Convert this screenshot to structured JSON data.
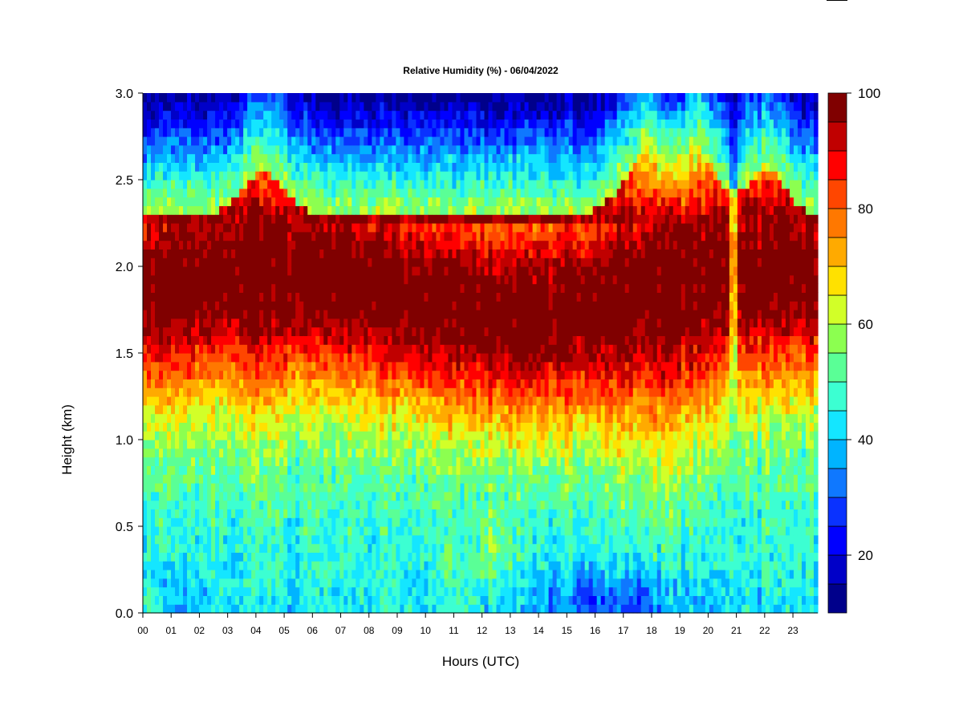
{
  "chart_data": {
    "type": "heatmap",
    "title": "Relative Humidity (%) - 06/04/2022",
    "xlabel": "Hours (UTC)",
    "ylabel": "Height (km)",
    "xlim": [
      0,
      24
    ],
    "ylim": [
      0.0,
      3.0
    ],
    "x_ticks": [
      0,
      1,
      2,
      3,
      4,
      5,
      6,
      7,
      8,
      9,
      10,
      11,
      12,
      13,
      14,
      15,
      16,
      17,
      18,
      19,
      20,
      21,
      22,
      23
    ],
    "x_tick_labels": [
      "00",
      "01",
      "02",
      "03",
      "04",
      "05",
      "06",
      "07",
      "08",
      "09",
      "10",
      "11",
      "12",
      "13",
      "14",
      "15",
      "16",
      "17",
      "18",
      "19",
      "20",
      "21",
      "22",
      "23"
    ],
    "y_ticks": [
      0.0,
      0.5,
      1.0,
      1.5,
      2.0,
      2.5,
      3.0
    ],
    "y_tick_labels": [
      "0.0",
      "0.5",
      "1.0",
      "1.5",
      "2.0",
      "2.5",
      "3.0"
    ],
    "colorbar": {
      "min": 10,
      "max": 100,
      "levels": [
        10,
        15,
        20,
        25,
        30,
        35,
        40,
        45,
        50,
        55,
        60,
        65,
        70,
        75,
        80,
        85,
        90,
        95,
        100
      ],
      "tick_values": [
        20,
        40,
        60,
        80,
        100
      ],
      "tick_labels": [
        "20",
        "40",
        "60",
        "80",
        "100"
      ],
      "colors": [
        "#00008b",
        "#0000c8",
        "#0000ff",
        "#0a32ff",
        "#0f78ff",
        "#00b4ff",
        "#14e6ff",
        "#3cffd2",
        "#5aff96",
        "#8cff50",
        "#d2ff28",
        "#ffe100",
        "#ffaa00",
        "#ff7800",
        "#ff4600",
        "#ff0000",
        "#c00000",
        "#800000"
      ]
    }
  }
}
